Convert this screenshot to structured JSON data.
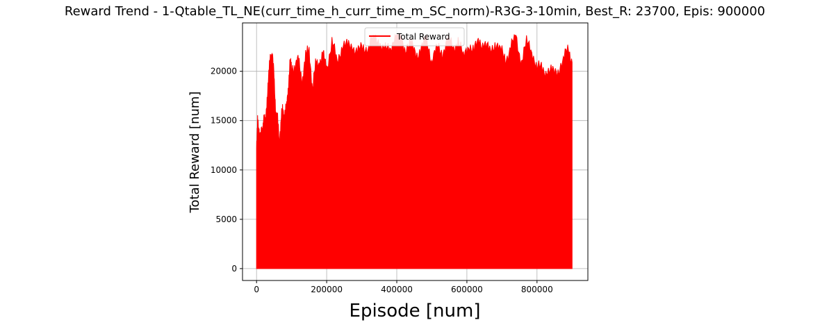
{
  "chart_data": {
    "type": "line",
    "title": "Reward Trend - 1-Qtable_TL_NE(curr_time_h_curr_time_m_SC_norm)-R3G-3-10min, Best_R: 23700, Epis: 900000",
    "xlabel": "Episode [num]",
    "ylabel": "Total Reward [num]",
    "xlim": [
      -40000,
      945000
    ],
    "ylim": [
      -1200,
      24900
    ],
    "xticks": [
      0,
      200000,
      400000,
      600000,
      800000
    ],
    "xtick_labels": [
      "0",
      "200000",
      "400000",
      "600000",
      "800000"
    ],
    "yticks": [
      0,
      5000,
      10000,
      15000,
      20000
    ],
    "ytick_labels": [
      "0",
      "5000",
      "10000",
      "15000",
      "20000"
    ],
    "grid": true,
    "legend_position": "upper center",
    "series": [
      {
        "name": "Total Reward",
        "color": "#ff0000",
        "fill_to_zero": true,
        "x": [
          0,
          3000,
          6000,
          9000,
          12000,
          16000,
          20000,
          25000,
          30000,
          35000,
          40000,
          45000,
          50000,
          55000,
          60000,
          65000,
          70000,
          75000,
          80000,
          85000,
          90000,
          95000,
          100000,
          110000,
          120000,
          130000,
          140000,
          150000,
          160000,
          170000,
          180000,
          190000,
          200000,
          215000,
          230000,
          245000,
          260000,
          275000,
          290000,
          305000,
          320000,
          335000,
          350000,
          365000,
          380000,
          395000,
          410000,
          425000,
          440000,
          455000,
          470000,
          485000,
          500000,
          515000,
          530000,
          545000,
          560000,
          575000,
          590000,
          605000,
          620000,
          635000,
          650000,
          665000,
          680000,
          695000,
          710000,
          725000,
          740000,
          755000,
          770000,
          785000,
          800000,
          815000,
          830000,
          845000,
          860000,
          875000,
          890000,
          900000
        ],
        "y": [
          12200,
          15400,
          13500,
          14100,
          13200,
          14000,
          15200,
          14600,
          17400,
          19600,
          21800,
          21600,
          19300,
          16000,
          14900,
          13200,
          15000,
          16100,
          15700,
          16000,
          18300,
          20600,
          20600,
          20500,
          21000,
          19200,
          21300,
          22400,
          18200,
          20900,
          21000,
          21500,
          20500,
          22900,
          21000,
          22800,
          22400,
          22600,
          21900,
          22400,
          22600,
          23600,
          23100,
          22000,
          22300,
          23700,
          23600,
          22400,
          22700,
          21800,
          22200,
          23200,
          21200,
          22300,
          21900,
          23300,
          22300,
          23200,
          21300,
          22900,
          21900,
          23200,
          22700,
          21900,
          23000,
          22100,
          21300,
          22400,
          23500,
          21000,
          22800,
          22300,
          20200,
          20300,
          20000,
          19800,
          20200,
          21000,
          22500,
          20900
        ]
      }
    ]
  }
}
